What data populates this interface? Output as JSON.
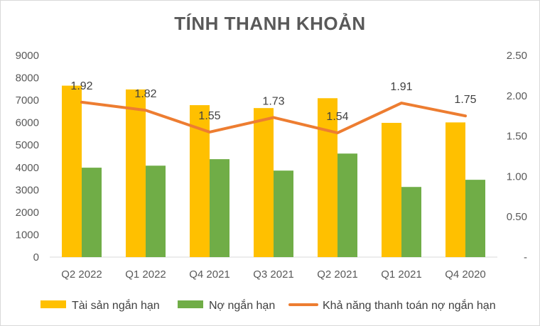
{
  "chart_data": {
    "type": "bar",
    "title": "TÍNH THANH KHOẢN",
    "categories": [
      "Q2 2022",
      "Q1 2022",
      "Q4 2021",
      "Q3 2021",
      "Q2 2021",
      "Q1 2021",
      "Q4 2020"
    ],
    "series": [
      {
        "name": "Tài sản ngắn hạn",
        "type": "bar",
        "axis": "left",
        "color": "#ffc000",
        "values": [
          7650,
          7480,
          6780,
          6650,
          7090,
          5990,
          6010
        ]
      },
      {
        "name": "Nợ ngắn hạn",
        "type": "bar",
        "axis": "left",
        "color": "#70ad47",
        "values": [
          3990,
          4080,
          4370,
          3860,
          4620,
          3130,
          3450
        ]
      },
      {
        "name": "Khả năng thanh toán nợ ngắn hạn",
        "type": "line",
        "axis": "right",
        "color": "#ed7d31",
        "values": [
          1.92,
          1.82,
          1.55,
          1.73,
          1.54,
          1.91,
          1.75
        ],
        "labels": [
          "1.92",
          "1.82",
          "1.55",
          "1.73",
          "1.54",
          "1.91",
          "1.75"
        ]
      }
    ],
    "y_left": {
      "ylim": [
        0,
        9000
      ],
      "ticks": [
        "0",
        "1000",
        "2000",
        "3000",
        "4000",
        "5000",
        "6000",
        "7000",
        "8000",
        "9000"
      ]
    },
    "y_right": {
      "ylim": [
        0,
        2.5
      ],
      "ticks": [
        "-",
        "0.50",
        "1.00",
        "1.50",
        "2.00",
        "2.50"
      ]
    },
    "grid": false,
    "legend": "bottom"
  }
}
